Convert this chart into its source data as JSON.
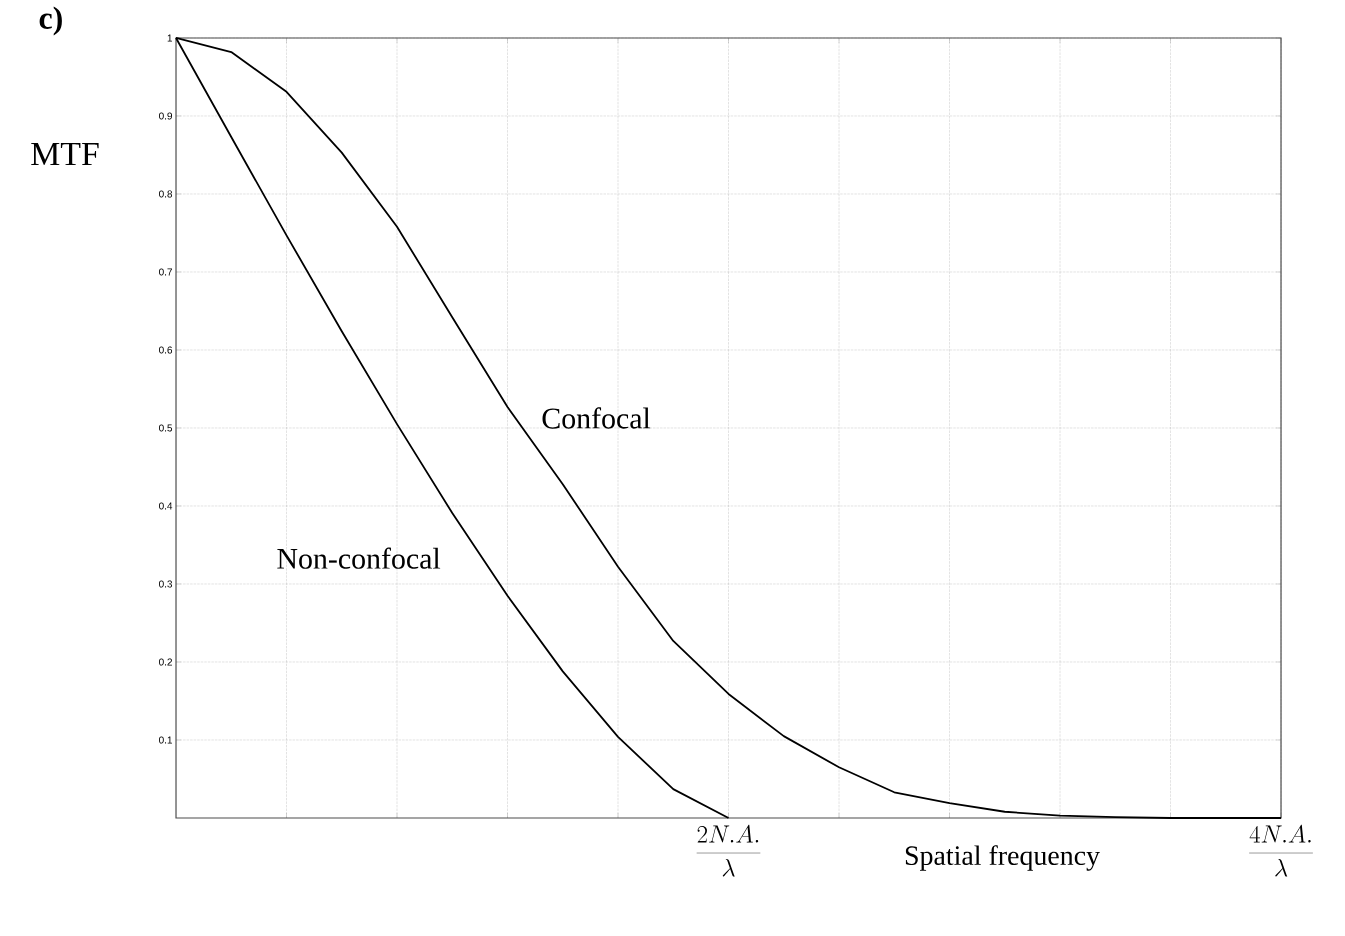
{
  "chart_data": {
    "type": "line",
    "title": "c)",
    "xlabel": "Spatial frequency",
    "ylabel": "MTF",
    "x": [
      0,
      0.2,
      0.4,
      0.6,
      0.8,
      1.0,
      1.2,
      1.4,
      1.6,
      1.8,
      2.0,
      2.2,
      2.4,
      2.6,
      2.8,
      3.0,
      3.2,
      3.4,
      3.6,
      3.8,
      4.0
    ],
    "series": [
      {
        "name": "Confocal",
        "color": "#000000",
        "values": [
          1,
          0.982,
          0.931,
          0.853,
          0.758,
          0.642,
          0.527,
          0.428,
          0.322,
          0.227,
          0.159,
          0.105,
          0.065,
          0.033,
          0.019,
          0.008,
          0.003,
          0.001,
          0,
          0,
          0
        ]
      },
      {
        "name": "Non-confocal",
        "color": "#000000",
        "values": [
          1,
          0.873,
          0.747,
          0.624,
          0.505,
          0.391,
          0.285,
          0.188,
          0.104,
          0.037,
          0,
          null,
          null,
          null,
          null,
          null,
          null,
          null,
          null,
          null,
          null
        ]
      }
    ],
    "xlim": [
      0,
      4
    ],
    "ylim": [
      0,
      1
    ],
    "xticks": [
      {
        "value": 0.4,
        "label": null
      },
      {
        "value": 0.8,
        "label": null
      },
      {
        "value": 1.2,
        "label": null
      },
      {
        "value": 1.6,
        "label": null
      },
      {
        "value": 2,
        "label": "\\frac{2N.A.}{\\lambda}"
      },
      {
        "value": 2.4,
        "label": null
      },
      {
        "value": 2.8,
        "label": null
      },
      {
        "value": 3.2,
        "label": null
      },
      {
        "value": 3.6,
        "label": null
      },
      {
        "value": 4,
        "label": "\\frac{4N.A.}{\\lambda}"
      }
    ],
    "yticks": [
      0.1,
      0.2,
      0.3,
      0.4,
      0.5,
      0.6,
      0.7,
      0.8,
      0.9,
      1
    ],
    "grid": true,
    "marker": "none",
    "line_style": "solid"
  }
}
